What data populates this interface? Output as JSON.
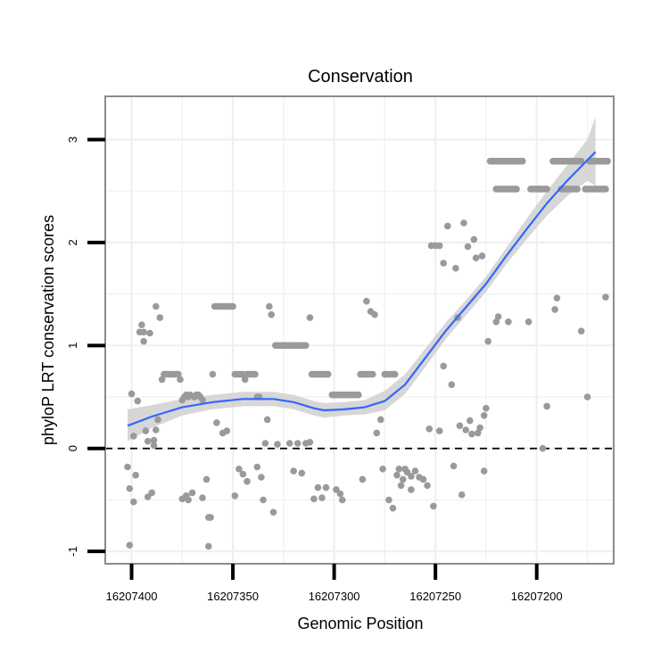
{
  "chart_data": {
    "type": "scatter",
    "title": "Conservation",
    "xlabel": "Genomic Position",
    "ylabel": "phyloP LRT conservation scores",
    "x_reversed": true,
    "xlim": [
      16207413,
      16207162
    ],
    "ylim": [
      -1.12,
      3.42
    ],
    "x_ticks": [
      16207400,
      16207350,
      16207300,
      16207250,
      16207200
    ],
    "x_tick_labels": [
      "16207400",
      "16207350",
      "16207300",
      "16207250",
      "16207200"
    ],
    "y_ticks": [
      -1,
      0,
      1,
      2,
      3
    ],
    "y_tick_labels": [
      "-1",
      "0",
      "1",
      "2",
      "3"
    ],
    "reference_line": {
      "y": 0,
      "style": "dashed"
    },
    "grid": true,
    "colors": {
      "points": "#9a9a9a",
      "smooth_line": "#3366ff",
      "confidence_band": "#d3d3d3",
      "panel_border": "#8c8c8c",
      "grid": "#f0f0f0"
    },
    "points": [
      [
        16207402,
        -0.18
      ],
      [
        16207401,
        -0.39
      ],
      [
        16207401,
        -0.94
      ],
      [
        16207400,
        0.53
      ],
      [
        16207399,
        -0.52
      ],
      [
        16207399,
        0.12
      ],
      [
        16207398,
        -0.26
      ],
      [
        16207397,
        0.46
      ],
      [
        16207396,
        1.13
      ],
      [
        16207395,
        1.2
      ],
      [
        16207394,
        1.13
      ],
      [
        16207394,
        1.04
      ],
      [
        16207393,
        0.17
      ],
      [
        16207392,
        -0.47
      ],
      [
        16207392,
        0.07
      ],
      [
        16207391,
        1.12
      ],
      [
        16207390,
        -0.43
      ],
      [
        16207389,
        0.08
      ],
      [
        16207389,
        0.03
      ],
      [
        16207388,
        1.38
      ],
      [
        16207388,
        0.18
      ],
      [
        16207387,
        0.28
      ],
      [
        16207386,
        1.27
      ],
      [
        16207385,
        0.67
      ],
      [
        16207384,
        0.72
      ],
      [
        16207383,
        0.72
      ],
      [
        16207382,
        0.72
      ],
      [
        16207381,
        0.72
      ],
      [
        16207380,
        0.72
      ],
      [
        16207379,
        0.72
      ],
      [
        16207378,
        0.72
      ],
      [
        16207377,
        0.72
      ],
      [
        16207376,
        0.67
      ],
      [
        16207375,
        0.47
      ],
      [
        16207375,
        -0.49
      ],
      [
        16207374,
        0.5
      ],
      [
        16207373,
        0.52
      ],
      [
        16207373,
        -0.46
      ],
      [
        16207372,
        0.5
      ],
      [
        16207372,
        -0.5
      ],
      [
        16207371,
        0.52
      ],
      [
        16207370,
        -0.43
      ],
      [
        16207369,
        0.5
      ],
      [
        16207369,
        0.5
      ],
      [
        16207368,
        0.52
      ],
      [
        16207367,
        0.52
      ],
      [
        16207366,
        0.5
      ],
      [
        16207365,
        0.47
      ],
      [
        16207365,
        -0.48
      ],
      [
        16207363,
        -0.3
      ],
      [
        16207362,
        -0.95
      ],
      [
        16207362,
        -0.67
      ],
      [
        16207361,
        -0.67
      ],
      [
        16207360,
        0.72
      ],
      [
        16207359,
        1.38
      ],
      [
        16207358,
        1.38
      ],
      [
        16207357,
        1.38
      ],
      [
        16207356,
        1.38
      ],
      [
        16207355,
        1.38
      ],
      [
        16207354,
        1.38
      ],
      [
        16207353,
        1.38
      ],
      [
        16207352,
        1.38
      ],
      [
        16207351,
        1.38
      ],
      [
        16207350,
        1.38
      ],
      [
        16207349,
        0.72
      ],
      [
        16207348,
        0.72
      ],
      [
        16207347,
        0.72
      ],
      [
        16207346,
        0.72
      ],
      [
        16207345,
        0.72
      ],
      [
        16207344,
        0.67
      ],
      [
        16207343,
        0.72
      ],
      [
        16207342,
        0.72
      ],
      [
        16207341,
        0.72
      ],
      [
        16207340,
        0.72
      ],
      [
        16207339,
        0.72
      ],
      [
        16207338,
        0.5
      ],
      [
        16207337,
        0.5
      ],
      [
        16207358,
        0.25
      ],
      [
        16207355,
        0.15
      ],
      [
        16207353,
        0.17
      ],
      [
        16207349,
        -0.46
      ],
      [
        16207347,
        -0.2
      ],
      [
        16207345,
        -0.25
      ],
      [
        16207343,
        -0.32
      ],
      [
        16207338,
        -0.18
      ],
      [
        16207336,
        -0.28
      ],
      [
        16207335,
        -0.5
      ],
      [
        16207333,
        0.28
      ],
      [
        16207332,
        1.38
      ],
      [
        16207331,
        1.3
      ],
      [
        16207330,
        -0.62
      ],
      [
        16207329,
        1.0
      ],
      [
        16207328,
        1.0
      ],
      [
        16207327,
        1.0
      ],
      [
        16207326,
        1.0
      ],
      [
        16207325,
        1.0
      ],
      [
        16207324,
        1.0
      ],
      [
        16207323,
        1.0
      ],
      [
        16207322,
        1.0
      ],
      [
        16207321,
        1.0
      ],
      [
        16207320,
        1.0
      ],
      [
        16207319,
        1.0
      ],
      [
        16207318,
        1.0
      ],
      [
        16207317,
        1.0
      ],
      [
        16207316,
        1.0
      ],
      [
        16207315,
        1.0
      ],
      [
        16207314,
        1.0
      ],
      [
        16207334,
        0.05
      ],
      [
        16207328,
        0.04
      ],
      [
        16207322,
        0.05
      ],
      [
        16207320,
        -0.22
      ],
      [
        16207318,
        0.05
      ],
      [
        16207316,
        -0.24
      ],
      [
        16207314,
        0.05
      ],
      [
        16207312,
        1.27
      ],
      [
        16207312,
        0.06
      ],
      [
        16207311,
        0.72
      ],
      [
        16207310,
        0.72
      ],
      [
        16207309,
        0.72
      ],
      [
        16207308,
        0.72
      ],
      [
        16207307,
        0.72
      ],
      [
        16207306,
        0.72
      ],
      [
        16207305,
        0.72
      ],
      [
        16207304,
        0.72
      ],
      [
        16207303,
        0.72
      ],
      [
        16207310,
        -0.49
      ],
      [
        16207308,
        -0.38
      ],
      [
        16207306,
        -0.48
      ],
      [
        16207304,
        -0.38
      ],
      [
        16207301,
        0.52
      ],
      [
        16207300,
        0.52
      ],
      [
        16207299,
        0.52
      ],
      [
        16207298,
        0.52
      ],
      [
        16207297,
        0.52
      ],
      [
        16207296,
        0.52
      ],
      [
        16207295,
        0.52
      ],
      [
        16207294,
        0.52
      ],
      [
        16207293,
        0.52
      ],
      [
        16207292,
        0.52
      ],
      [
        16207291,
        0.52
      ],
      [
        16207290,
        0.52
      ],
      [
        16207289,
        0.52
      ],
      [
        16207288,
        0.52
      ],
      [
        16207287,
        0.72
      ],
      [
        16207286,
        0.72
      ],
      [
        16207285,
        0.72
      ],
      [
        16207284,
        0.72
      ],
      [
        16207283,
        0.72
      ],
      [
        16207282,
        0.72
      ],
      [
        16207281,
        0.72
      ],
      [
        16207299,
        -0.4
      ],
      [
        16207297,
        -0.44
      ],
      [
        16207296,
        -0.5
      ],
      [
        16207286,
        -0.3
      ],
      [
        16207284,
        1.43
      ],
      [
        16207282,
        1.33
      ],
      [
        16207280,
        1.3
      ],
      [
        16207279,
        0.15
      ],
      [
        16207277,
        0.28
      ],
      [
        16207276,
        -0.2
      ],
      [
        16207275,
        0.72
      ],
      [
        16207274,
        0.72
      ],
      [
        16207273,
        0.72
      ],
      [
        16207272,
        0.72
      ],
      [
        16207271,
        0.72
      ],
      [
        16207270,
        0.72
      ],
      [
        16207273,
        -0.5
      ],
      [
        16207271,
        -0.58
      ],
      [
        16207269,
        -0.26
      ],
      [
        16207268,
        -0.2
      ],
      [
        16207267,
        -0.36
      ],
      [
        16207266,
        -0.3
      ],
      [
        16207265,
        -0.2
      ],
      [
        16207264,
        -0.23
      ],
      [
        16207262,
        -0.27
      ],
      [
        16207262,
        -0.4
      ],
      [
        16207260,
        -0.22
      ],
      [
        16207258,
        -0.28
      ],
      [
        16207256,
        -0.3
      ],
      [
        16207254,
        -0.36
      ],
      [
        16207253,
        0.19
      ],
      [
        16207252,
        1.97
      ],
      [
        16207251,
        -0.56
      ],
      [
        16207250,
        1.97
      ],
      [
        16207248,
        0.17
      ],
      [
        16207248,
        1.97
      ],
      [
        16207246,
        1.8
      ],
      [
        16207246,
        0.8
      ],
      [
        16207244,
        2.16
      ],
      [
        16207242,
        0.62
      ],
      [
        16207241,
        -0.17
      ],
      [
        16207240,
        1.75
      ],
      [
        16207239,
        1.27
      ],
      [
        16207238,
        0.22
      ],
      [
        16207237,
        -0.45
      ],
      [
        16207236,
        2.19
      ],
      [
        16207235,
        0.18
      ],
      [
        16207234,
        1.96
      ],
      [
        16207233,
        0.27
      ],
      [
        16207232,
        0.14
      ],
      [
        16207231,
        2.03
      ],
      [
        16207230,
        1.85
      ],
      [
        16207229,
        0.15
      ],
      [
        16207228,
        0.2
      ],
      [
        16207227,
        1.87
      ],
      [
        16207226,
        -0.22
      ],
      [
        16207226,
        0.32
      ],
      [
        16207225,
        0.39
      ],
      [
        16207224,
        1.04
      ],
      [
        16207223,
        2.79
      ],
      [
        16207222,
        2.79
      ],
      [
        16207221,
        2.79
      ],
      [
        16207220,
        2.79
      ],
      [
        16207219,
        2.79
      ],
      [
        16207218,
        2.79
      ],
      [
        16207217,
        2.79
      ],
      [
        16207216,
        2.79
      ],
      [
        16207215,
        2.79
      ],
      [
        16207214,
        2.79
      ],
      [
        16207213,
        2.79
      ],
      [
        16207212,
        2.79
      ],
      [
        16207211,
        2.79
      ],
      [
        16207210,
        2.79
      ],
      [
        16207209,
        2.79
      ],
      [
        16207208,
        2.79
      ],
      [
        16207207,
        2.79
      ],
      [
        16207220,
        2.52
      ],
      [
        16207219,
        2.52
      ],
      [
        16207218,
        2.52
      ],
      [
        16207217,
        2.52
      ],
      [
        16207216,
        2.52
      ],
      [
        16207215,
        2.52
      ],
      [
        16207214,
        2.52
      ],
      [
        16207213,
        2.52
      ],
      [
        16207212,
        2.52
      ],
      [
        16207211,
        2.52
      ],
      [
        16207210,
        2.52
      ],
      [
        16207220,
        1.23
      ],
      [
        16207219,
        1.28
      ],
      [
        16207214,
        1.23
      ],
      [
        16207203,
        2.52
      ],
      [
        16207202,
        2.52
      ],
      [
        16207201,
        2.52
      ],
      [
        16207200,
        2.52
      ],
      [
        16207199,
        2.52
      ],
      [
        16207198,
        2.52
      ],
      [
        16207197,
        2.52
      ],
      [
        16207196,
        2.52
      ],
      [
        16207195,
        2.52
      ],
      [
        16207204,
        1.23
      ],
      [
        16207197,
        0.0
      ],
      [
        16207195,
        0.41
      ],
      [
        16207192,
        2.79
      ],
      [
        16207191,
        2.79
      ],
      [
        16207190,
        2.79
      ],
      [
        16207189,
        2.79
      ],
      [
        16207188,
        2.79
      ],
      [
        16207187,
        2.79
      ],
      [
        16207186,
        2.79
      ],
      [
        16207185,
        2.79
      ],
      [
        16207184,
        2.79
      ],
      [
        16207183,
        2.79
      ],
      [
        16207182,
        2.79
      ],
      [
        16207181,
        2.79
      ],
      [
        16207180,
        2.79
      ],
      [
        16207179,
        2.79
      ],
      [
        16207178,
        2.79
      ],
      [
        16207188,
        2.52
      ],
      [
        16207187,
        2.52
      ],
      [
        16207186,
        2.52
      ],
      [
        16207185,
        2.52
      ],
      [
        16207184,
        2.52
      ],
      [
        16207183,
        2.52
      ],
      [
        16207182,
        2.52
      ],
      [
        16207181,
        2.52
      ],
      [
        16207180,
        2.52
      ],
      [
        16207176,
        2.52
      ],
      [
        16207175,
        2.52
      ],
      [
        16207174,
        2.52
      ],
      [
        16207173,
        2.52
      ],
      [
        16207172,
        2.52
      ],
      [
        16207171,
        2.52
      ],
      [
        16207170,
        2.52
      ],
      [
        16207169,
        2.52
      ],
      [
        16207168,
        2.52
      ],
      [
        16207174,
        2.79
      ],
      [
        16207173,
        2.79
      ],
      [
        16207172,
        2.79
      ],
      [
        16207171,
        2.79
      ],
      [
        16207170,
        2.79
      ],
      [
        16207169,
        2.79
      ],
      [
        16207168,
        2.79
      ],
      [
        16207167,
        2.79
      ],
      [
        16207166,
        2.79
      ],
      [
        16207165,
        2.79
      ],
      [
        16207167,
        2.52
      ],
      [
        16207166,
        2.52
      ],
      [
        16207191,
        1.35
      ],
      [
        16207190,
        1.46
      ],
      [
        16207178,
        1.14
      ],
      [
        16207175,
        0.5
      ],
      [
        16207166,
        1.47
      ]
    ],
    "smooth": [
      [
        16207402,
        0.22
      ],
      [
        16207390,
        0.31
      ],
      [
        16207375,
        0.4
      ],
      [
        16207360,
        0.45
      ],
      [
        16207345,
        0.48
      ],
      [
        16207330,
        0.48
      ],
      [
        16207320,
        0.45
      ],
      [
        16207310,
        0.39
      ],
      [
        16207305,
        0.37
      ],
      [
        16207295,
        0.38
      ],
      [
        16207285,
        0.4
      ],
      [
        16207275,
        0.46
      ],
      [
        16207265,
        0.62
      ],
      [
        16207255,
        0.88
      ],
      [
        16207245,
        1.14
      ],
      [
        16207235,
        1.37
      ],
      [
        16207225,
        1.6
      ],
      [
        16207215,
        1.87
      ],
      [
        16207205,
        2.13
      ],
      [
        16207195,
        2.38
      ],
      [
        16207185,
        2.6
      ],
      [
        16207175,
        2.8
      ],
      [
        16207171,
        2.88
      ]
    ],
    "band_upper": [
      [
        16207402,
        0.38
      ],
      [
        16207390,
        0.42
      ],
      [
        16207375,
        0.48
      ],
      [
        16207360,
        0.52
      ],
      [
        16207345,
        0.55
      ],
      [
        16207330,
        0.55
      ],
      [
        16207320,
        0.52
      ],
      [
        16207310,
        0.46
      ],
      [
        16207305,
        0.44
      ],
      [
        16207295,
        0.45
      ],
      [
        16207285,
        0.47
      ],
      [
        16207275,
        0.56
      ],
      [
        16207265,
        0.72
      ],
      [
        16207255,
        0.97
      ],
      [
        16207245,
        1.22
      ],
      [
        16207235,
        1.44
      ],
      [
        16207225,
        1.67
      ],
      [
        16207215,
        1.95
      ],
      [
        16207205,
        2.23
      ],
      [
        16207195,
        2.5
      ],
      [
        16207185,
        2.75
      ],
      [
        16207175,
        3.0
      ],
      [
        16207171,
        3.22
      ]
    ],
    "band_lower": [
      [
        16207402,
        0.07
      ],
      [
        16207390,
        0.2
      ],
      [
        16207375,
        0.32
      ],
      [
        16207360,
        0.38
      ],
      [
        16207345,
        0.41
      ],
      [
        16207330,
        0.41
      ],
      [
        16207320,
        0.38
      ],
      [
        16207310,
        0.32
      ],
      [
        16207305,
        0.3
      ],
      [
        16207295,
        0.32
      ],
      [
        16207285,
        0.33
      ],
      [
        16207275,
        0.37
      ],
      [
        16207265,
        0.53
      ],
      [
        16207255,
        0.79
      ],
      [
        16207245,
        1.06
      ],
      [
        16207235,
        1.29
      ],
      [
        16207225,
        1.52
      ],
      [
        16207215,
        1.79
      ],
      [
        16207205,
        2.03
      ],
      [
        16207195,
        2.26
      ],
      [
        16207185,
        2.45
      ],
      [
        16207175,
        2.6
      ],
      [
        16207171,
        2.55
      ]
    ]
  }
}
